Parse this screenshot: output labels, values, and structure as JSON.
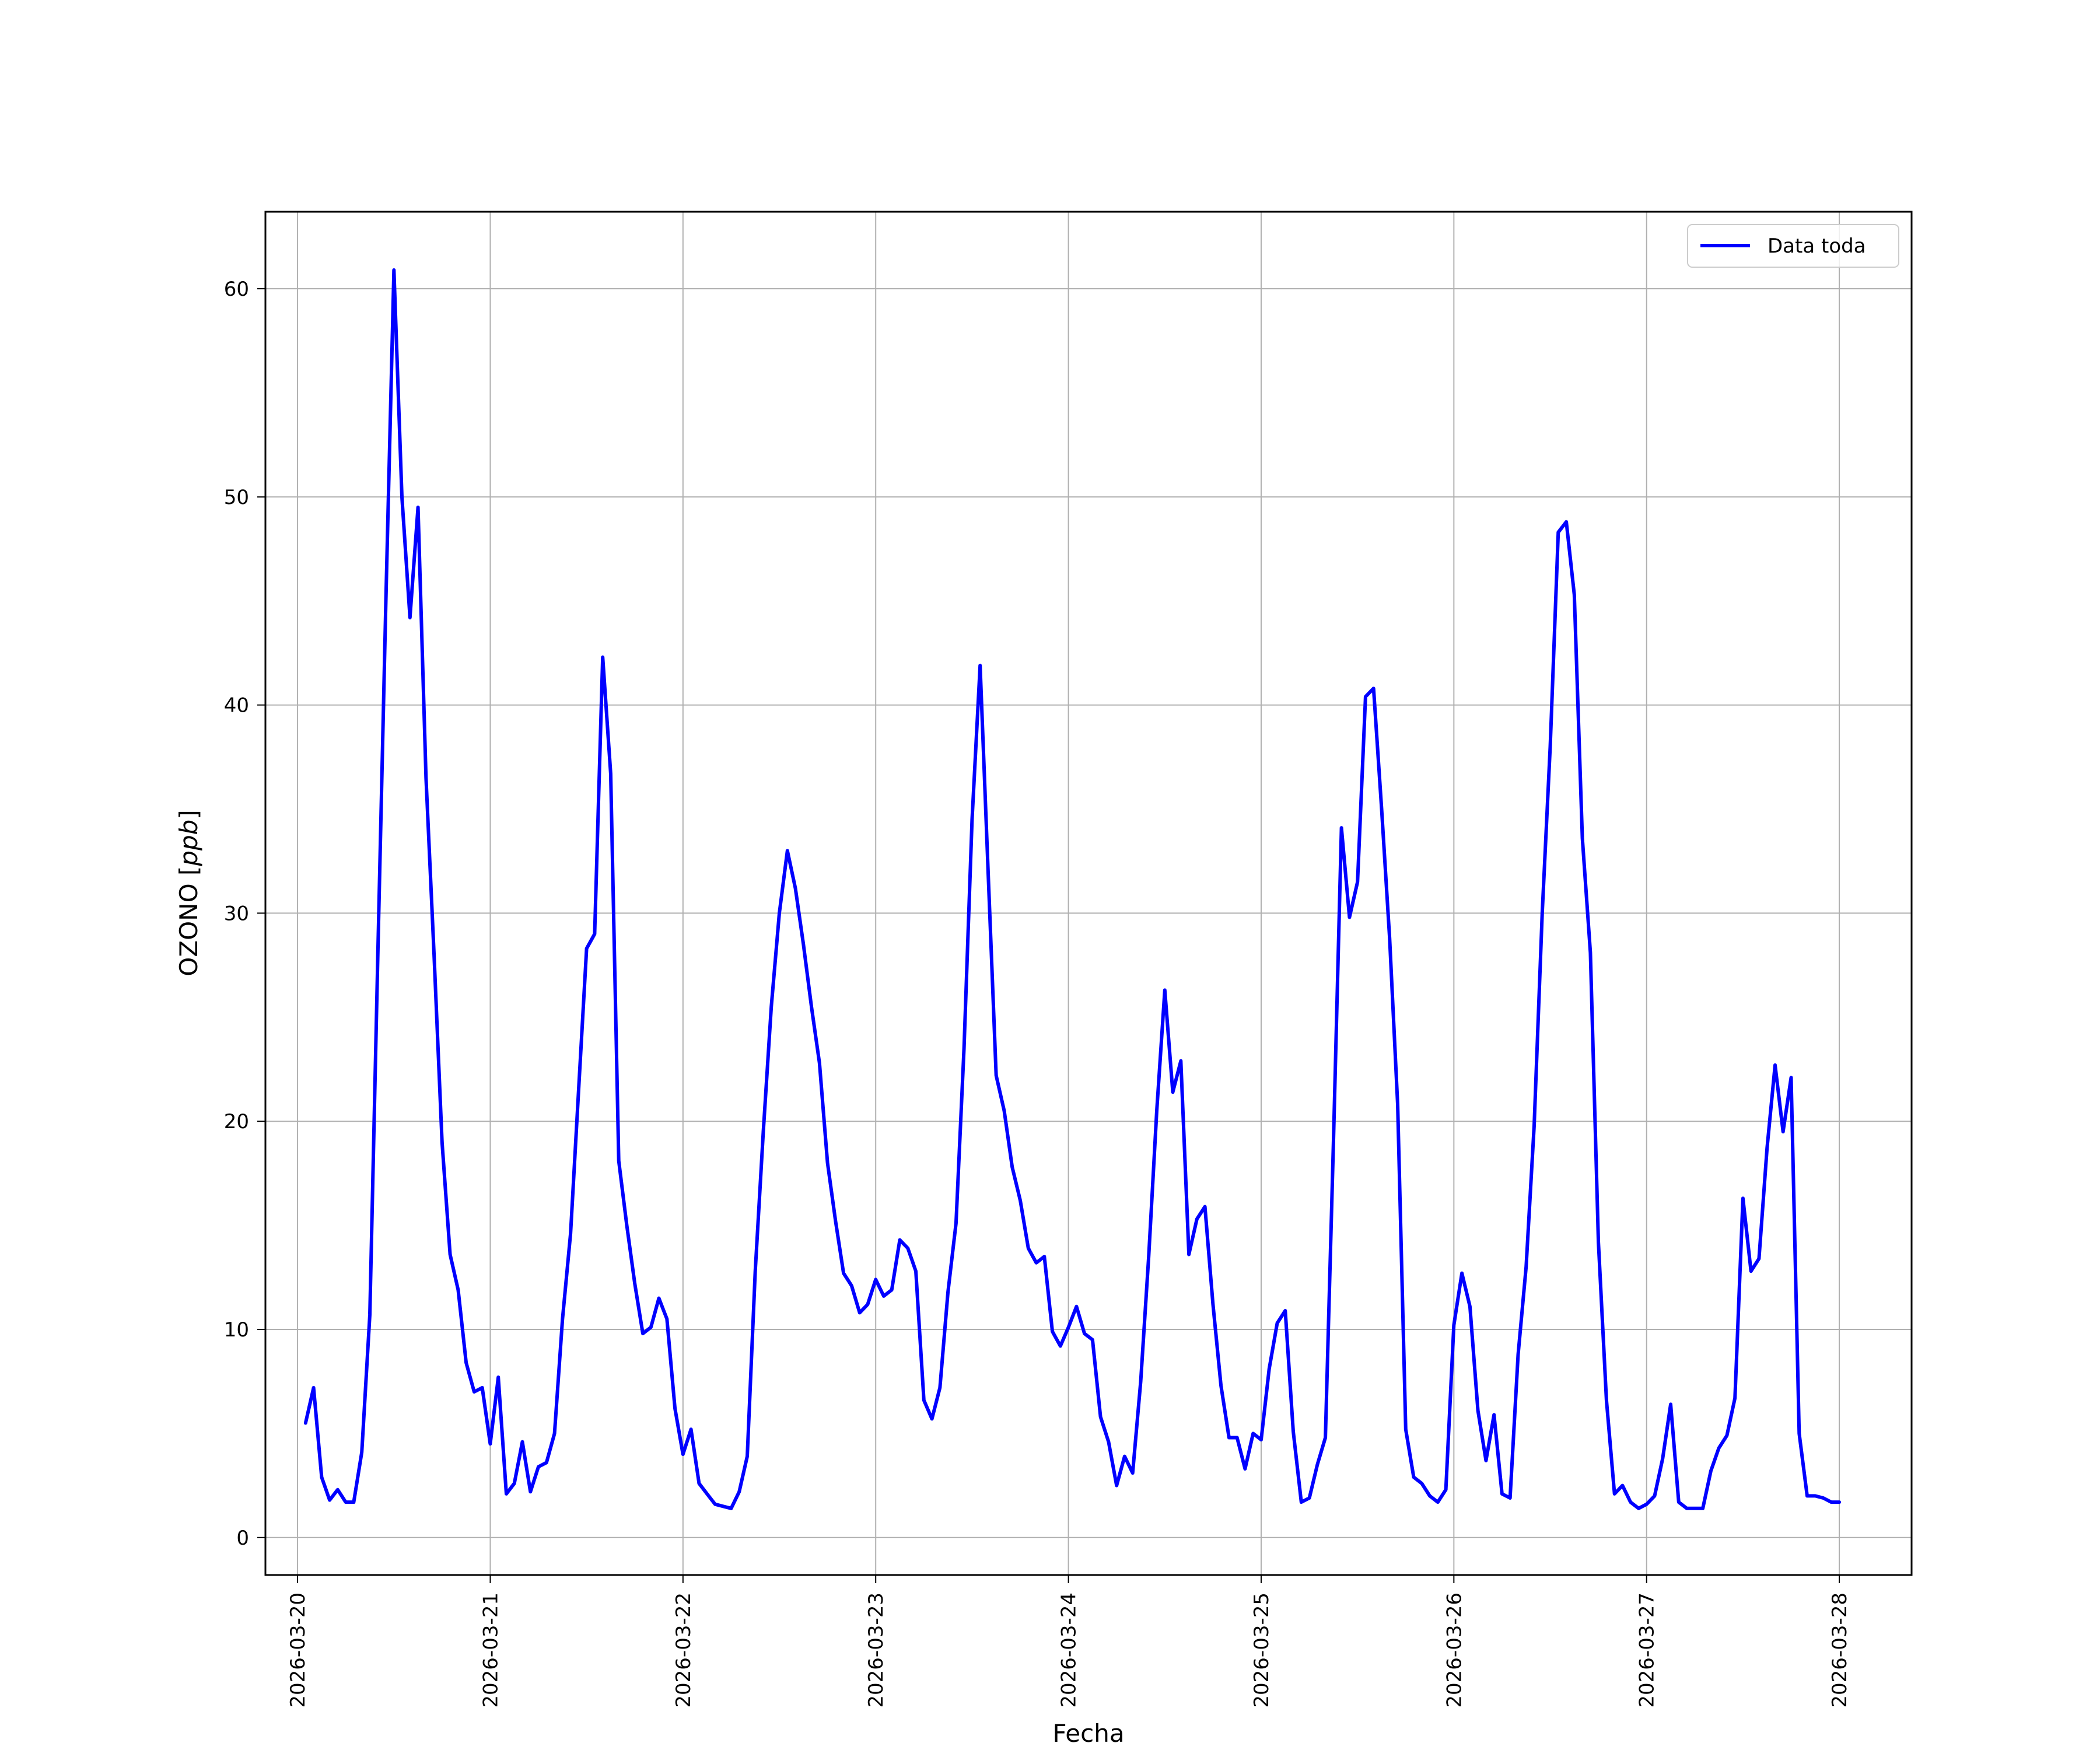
{
  "chart_data": {
    "type": "line",
    "xlabel": "Fecha",
    "ylabel_text": "OZONO [",
    "ylabel_unit": "ppb",
    "ylabel_close": "]",
    "xlim": [
      "2026-03-19T20:00",
      "2026-03-28T09:00"
    ],
    "ylim": [
      -1.8,
      63.7
    ],
    "x_ticks": [
      "2026-03-20",
      "2026-03-21",
      "2026-03-22",
      "2026-03-23",
      "2026-03-24",
      "2026-03-25",
      "2026-03-26",
      "2026-03-27",
      "2026-03-28"
    ],
    "y_ticks": [
      0,
      10,
      20,
      30,
      40,
      50,
      60
    ],
    "grid": true,
    "legend_position": "top-right",
    "series": [
      {
        "name": "Data toda",
        "color": "#0000ff",
        "points": [
          [
            "2026-03-20T01:00",
            5.5
          ],
          [
            "2026-03-20T02:00",
            7.2
          ],
          [
            "2026-03-20T03:00",
            2.9
          ],
          [
            "2026-03-20T04:00",
            1.8
          ],
          [
            "2026-03-20T05:00",
            2.3
          ],
          [
            "2026-03-20T06:00",
            1.7
          ],
          [
            "2026-03-20T07:00",
            1.7
          ],
          [
            "2026-03-20T08:00",
            4.1
          ],
          [
            "2026-03-20T09:00",
            10.7
          ],
          [
            "2026-03-20T10:00",
            28.0
          ],
          [
            "2026-03-20T11:00",
            45.0
          ],
          [
            "2026-03-20T12:00",
            60.9
          ],
          [
            "2026-03-20T13:00",
            50.0
          ],
          [
            "2026-03-20T14:00",
            44.2
          ],
          [
            "2026-03-20T15:00",
            49.5
          ],
          [
            "2026-03-20T16:00",
            36.5
          ],
          [
            "2026-03-20T17:00",
            28.0
          ],
          [
            "2026-03-20T18:00",
            19.0
          ],
          [
            "2026-03-20T19:00",
            13.6
          ],
          [
            "2026-03-20T20:00",
            11.9
          ],
          [
            "2026-03-20T21:00",
            8.4
          ],
          [
            "2026-03-20T22:00",
            7.0
          ],
          [
            "2026-03-20T23:00",
            7.2
          ],
          [
            "2026-03-21T00:00",
            4.5
          ],
          [
            "2026-03-21T01:00",
            7.7
          ],
          [
            "2026-03-21T02:00",
            2.1
          ],
          [
            "2026-03-21T03:00",
            2.6
          ],
          [
            "2026-03-21T04:00",
            4.6
          ],
          [
            "2026-03-21T05:00",
            2.2
          ],
          [
            "2026-03-21T06:00",
            3.4
          ],
          [
            "2026-03-21T07:00",
            3.6
          ],
          [
            "2026-03-21T08:00",
            5.0
          ],
          [
            "2026-03-21T09:00",
            10.5
          ],
          [
            "2026-03-21T10:00",
            14.6
          ],
          [
            "2026-03-21T11:00",
            21.5
          ],
          [
            "2026-03-21T12:00",
            28.3
          ],
          [
            "2026-03-21T13:00",
            29.0
          ],
          [
            "2026-03-21T14:00",
            42.3
          ],
          [
            "2026-03-21T15:00",
            36.7
          ],
          [
            "2026-03-21T16:00",
            18.1
          ],
          [
            "2026-03-21T17:00",
            15.0
          ],
          [
            "2026-03-21T18:00",
            12.2
          ],
          [
            "2026-03-21T19:00",
            9.8
          ],
          [
            "2026-03-21T20:00",
            10.1
          ],
          [
            "2026-03-21T21:00",
            11.5
          ],
          [
            "2026-03-21T22:00",
            10.5
          ],
          [
            "2026-03-21T23:00",
            6.2
          ],
          [
            "2026-03-22T00:00",
            4.0
          ],
          [
            "2026-03-22T01:00",
            5.2
          ],
          [
            "2026-03-22T02:00",
            2.6
          ],
          [
            "2026-03-22T03:00",
            2.1
          ],
          [
            "2026-03-22T04:00",
            1.6
          ],
          [
            "2026-03-22T05:00",
            1.5
          ],
          [
            "2026-03-22T06:00",
            1.4
          ],
          [
            "2026-03-22T07:00",
            2.2
          ],
          [
            "2026-03-22T08:00",
            3.9
          ],
          [
            "2026-03-22T09:00",
            12.8
          ],
          [
            "2026-03-22T10:00",
            19.5
          ],
          [
            "2026-03-22T11:00",
            25.5
          ],
          [
            "2026-03-22T12:00",
            30.0
          ],
          [
            "2026-03-22T13:00",
            33.0
          ],
          [
            "2026-03-22T14:00",
            31.2
          ],
          [
            "2026-03-22T15:00",
            28.5
          ],
          [
            "2026-03-22T16:00",
            25.5
          ],
          [
            "2026-03-22T17:00",
            22.8
          ],
          [
            "2026-03-22T18:00",
            18.0
          ],
          [
            "2026-03-22T19:00",
            15.2
          ],
          [
            "2026-03-22T20:00",
            12.7
          ],
          [
            "2026-03-22T21:00",
            12.1
          ],
          [
            "2026-03-22T22:00",
            10.8
          ],
          [
            "2026-03-22T23:00",
            11.2
          ],
          [
            "2026-03-23T00:00",
            12.4
          ],
          [
            "2026-03-23T01:00",
            11.6
          ],
          [
            "2026-03-23T02:00",
            11.9
          ],
          [
            "2026-03-23T03:00",
            14.3
          ],
          [
            "2026-03-23T04:00",
            13.9
          ],
          [
            "2026-03-23T05:00",
            12.8
          ],
          [
            "2026-03-23T06:00",
            6.6
          ],
          [
            "2026-03-23T07:00",
            5.7
          ],
          [
            "2026-03-23T08:00",
            7.2
          ],
          [
            "2026-03-23T09:00",
            11.8
          ],
          [
            "2026-03-23T10:00",
            15.1
          ],
          [
            "2026-03-23T11:00",
            23.5
          ],
          [
            "2026-03-23T12:00",
            34.5
          ],
          [
            "2026-03-23T13:00",
            41.9
          ],
          [
            "2026-03-23T14:00",
            32.0
          ],
          [
            "2026-03-23T15:00",
            22.2
          ],
          [
            "2026-03-23T16:00",
            20.5
          ],
          [
            "2026-03-23T17:00",
            17.8
          ],
          [
            "2026-03-23T18:00",
            16.2
          ],
          [
            "2026-03-23T19:00",
            13.9
          ],
          [
            "2026-03-23T20:00",
            13.2
          ],
          [
            "2026-03-23T21:00",
            13.5
          ],
          [
            "2026-03-23T22:00",
            9.9
          ],
          [
            "2026-03-23T23:00",
            9.2
          ],
          [
            "2026-03-24T00:00",
            10.1
          ],
          [
            "2026-03-24T01:00",
            11.1
          ],
          [
            "2026-03-24T02:00",
            9.8
          ],
          [
            "2026-03-24T03:00",
            9.5
          ],
          [
            "2026-03-24T04:00",
            5.8
          ],
          [
            "2026-03-24T05:00",
            4.6
          ],
          [
            "2026-03-24T06:00",
            2.5
          ],
          [
            "2026-03-24T07:00",
            3.9
          ],
          [
            "2026-03-24T08:00",
            3.1
          ],
          [
            "2026-03-24T09:00",
            7.5
          ],
          [
            "2026-03-24T10:00",
            13.5
          ],
          [
            "2026-03-24T11:00",
            20.5
          ],
          [
            "2026-03-24T12:00",
            26.3
          ],
          [
            "2026-03-24T13:00",
            21.4
          ],
          [
            "2026-03-24T14:00",
            22.9
          ],
          [
            "2026-03-24T15:00",
            13.6
          ],
          [
            "2026-03-24T16:00",
            15.3
          ],
          [
            "2026-03-24T17:00",
            15.9
          ],
          [
            "2026-03-24T18:00",
            11.2
          ],
          [
            "2026-03-24T19:00",
            7.3
          ],
          [
            "2026-03-24T20:00",
            4.8
          ],
          [
            "2026-03-24T21:00",
            4.8
          ],
          [
            "2026-03-24T22:00",
            3.3
          ],
          [
            "2026-03-24T23:00",
            5.0
          ],
          [
            "2026-03-25T00:00",
            4.7
          ],
          [
            "2026-03-25T01:00",
            8.1
          ],
          [
            "2026-03-25T02:00",
            10.3
          ],
          [
            "2026-03-25T03:00",
            10.9
          ],
          [
            "2026-03-25T04:00",
            5.1
          ],
          [
            "2026-03-25T05:00",
            1.7
          ],
          [
            "2026-03-25T06:00",
            1.9
          ],
          [
            "2026-03-25T07:00",
            3.5
          ],
          [
            "2026-03-25T08:00",
            4.8
          ],
          [
            "2026-03-25T09:00",
            19.0
          ],
          [
            "2026-03-25T10:00",
            34.1
          ],
          [
            "2026-03-25T11:00",
            29.8
          ],
          [
            "2026-03-25T12:00",
            31.5
          ],
          [
            "2026-03-25T13:00",
            40.4
          ],
          [
            "2026-03-25T14:00",
            40.8
          ],
          [
            "2026-03-25T15:00",
            35.0
          ],
          [
            "2026-03-25T16:00",
            28.8
          ],
          [
            "2026-03-25T17:00",
            20.8
          ],
          [
            "2026-03-25T18:00",
            5.2
          ],
          [
            "2026-03-25T19:00",
            2.9
          ],
          [
            "2026-03-25T20:00",
            2.6
          ],
          [
            "2026-03-25T21:00",
            2.0
          ],
          [
            "2026-03-25T22:00",
            1.7
          ],
          [
            "2026-03-25T23:00",
            2.3
          ],
          [
            "2026-03-26T00:00",
            10.2
          ],
          [
            "2026-03-26T01:00",
            12.7
          ],
          [
            "2026-03-26T02:00",
            11.1
          ],
          [
            "2026-03-26T03:00",
            6.1
          ],
          [
            "2026-03-26T04:00",
            3.7
          ],
          [
            "2026-03-26T05:00",
            5.9
          ],
          [
            "2026-03-26T06:00",
            2.1
          ],
          [
            "2026-03-26T07:00",
            1.9
          ],
          [
            "2026-03-26T08:00",
            8.8
          ],
          [
            "2026-03-26T09:00",
            13.0
          ],
          [
            "2026-03-26T10:00",
            19.8
          ],
          [
            "2026-03-26T11:00",
            30.0
          ],
          [
            "2026-03-26T12:00",
            38.0
          ],
          [
            "2026-03-26T13:00",
            48.3
          ],
          [
            "2026-03-26T14:00",
            48.8
          ],
          [
            "2026-03-26T15:00",
            45.3
          ],
          [
            "2026-03-26T16:00",
            33.6
          ],
          [
            "2026-03-26T17:00",
            28.1
          ],
          [
            "2026-03-26T18:00",
            14.2
          ],
          [
            "2026-03-26T19:00",
            6.6
          ],
          [
            "2026-03-26T20:00",
            2.1
          ],
          [
            "2026-03-26T21:00",
            2.5
          ],
          [
            "2026-03-26T22:00",
            1.7
          ],
          [
            "2026-03-26T23:00",
            1.4
          ],
          [
            "2026-03-27T00:00",
            1.6
          ],
          [
            "2026-03-27T01:00",
            2.0
          ],
          [
            "2026-03-27T02:00",
            3.8
          ],
          [
            "2026-03-27T03:00",
            6.4
          ],
          [
            "2026-03-27T04:00",
            1.7
          ],
          [
            "2026-03-27T05:00",
            1.4
          ],
          [
            "2026-03-27T06:00",
            1.4
          ],
          [
            "2026-03-27T07:00",
            1.4
          ],
          [
            "2026-03-27T08:00",
            3.2
          ],
          [
            "2026-03-27T09:00",
            4.3
          ],
          [
            "2026-03-27T10:00",
            4.9
          ],
          [
            "2026-03-27T11:00",
            6.7
          ],
          [
            "2026-03-27T12:00",
            16.3
          ],
          [
            "2026-03-27T13:00",
            12.8
          ],
          [
            "2026-03-27T14:00",
            13.4
          ],
          [
            "2026-03-27T15:00",
            18.7
          ],
          [
            "2026-03-27T16:00",
            22.7
          ],
          [
            "2026-03-27T17:00",
            19.5
          ],
          [
            "2026-03-27T18:00",
            22.1
          ],
          [
            "2026-03-27T19:00",
            5.0
          ],
          [
            "2026-03-27T20:00",
            2.0
          ],
          [
            "2026-03-27T21:00",
            2.0
          ],
          [
            "2026-03-27T22:00",
            1.9
          ],
          [
            "2026-03-27T23:00",
            1.7
          ],
          [
            "2026-03-28T00:00",
            1.7
          ]
        ]
      }
    ]
  }
}
